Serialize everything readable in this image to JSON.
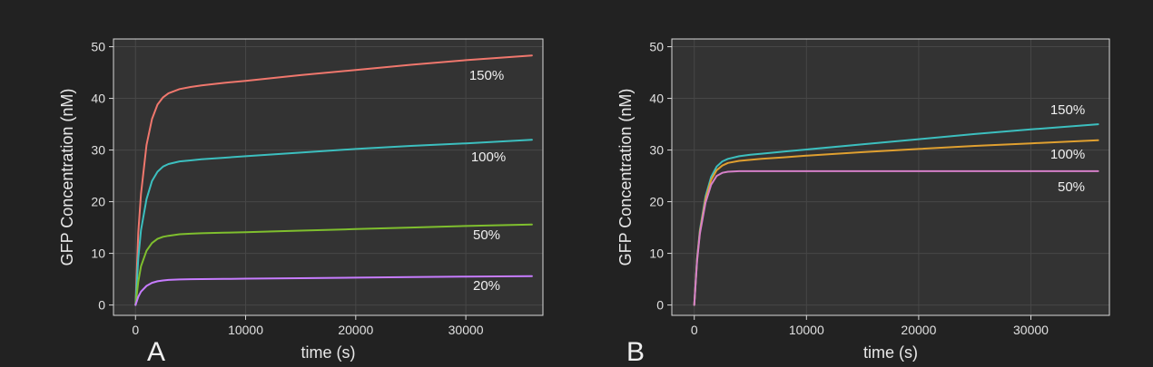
{
  "background": "#222222",
  "panel_background": "#333333",
  "chart_data": [
    {
      "type": "line",
      "panel_label": "A",
      "xlabel": "time (s)",
      "ylabel": "GFP Concentration (nM)",
      "xlim": [
        -2000,
        37000
      ],
      "ylim": [
        -2,
        51.5
      ],
      "xticks": [
        0,
        10000,
        20000,
        30000
      ],
      "yticks": [
        0,
        10,
        20,
        30,
        40,
        50
      ],
      "grid": true,
      "series": [
        {
          "name": "150%",
          "color": "#f0776d",
          "x": [
            0,
            250,
            500,
            1000,
            1500,
            2000,
            2500,
            3000,
            4000,
            5000,
            6000,
            8000,
            10000,
            15000,
            20000,
            25000,
            30000,
            36000
          ],
          "y": [
            0,
            14,
            21.5,
            31,
            36,
            38.8,
            40.2,
            41,
            41.8,
            42.2,
            42.5,
            43,
            43.4,
            44.5,
            45.5,
            46.5,
            47.4,
            48.3
          ]
        },
        {
          "name": "100%",
          "color": "#3cbfbf",
          "x": [
            0,
            250,
            500,
            1000,
            1500,
            2000,
            2500,
            3000,
            4000,
            5000,
            6000,
            8000,
            10000,
            15000,
            20000,
            25000,
            30000,
            36000
          ],
          "y": [
            0,
            9,
            14.5,
            20.5,
            24,
            25.8,
            26.8,
            27.3,
            27.8,
            28,
            28.2,
            28.5,
            28.8,
            29.5,
            30.2,
            30.8,
            31.3,
            32
          ]
        },
        {
          "name": "50%",
          "color": "#7fbf2e",
          "x": [
            0,
            250,
            500,
            1000,
            1500,
            2000,
            2500,
            3000,
            4000,
            5000,
            6000,
            8000,
            10000,
            15000,
            20000,
            25000,
            30000,
            36000
          ],
          "y": [
            0,
            4.5,
            7.5,
            10.5,
            12,
            12.8,
            13.2,
            13.4,
            13.7,
            13.8,
            13.9,
            14,
            14.1,
            14.4,
            14.7,
            15,
            15.3,
            15.6
          ]
        },
        {
          "name": "20%",
          "color": "#c77cff",
          "x": [
            0,
            250,
            500,
            1000,
            1500,
            2000,
            2500,
            3000,
            4000,
            5000,
            6000,
            8000,
            10000,
            15000,
            20000,
            25000,
            30000,
            36000
          ],
          "y": [
            0,
            1.6,
            2.6,
            3.7,
            4.3,
            4.6,
            4.75,
            4.85,
            4.95,
            5,
            5.02,
            5.05,
            5.1,
            5.2,
            5.3,
            5.4,
            5.5,
            5.6
          ]
        }
      ]
    },
    {
      "type": "line",
      "panel_label": "B",
      "xlabel": "time (s)",
      "ylabel": "GFP Concentration (nM)",
      "xlim": [
        -2000,
        37000
      ],
      "ylim": [
        -2,
        51.5
      ],
      "xticks": [
        0,
        10000,
        20000,
        30000
      ],
      "yticks": [
        0,
        10,
        20,
        30,
        40,
        50
      ],
      "grid": true,
      "series": [
        {
          "name": "150%",
          "color": "#3cbfbf",
          "x": [
            0,
            250,
            500,
            1000,
            1500,
            2000,
            2500,
            3000,
            4000,
            5000,
            6000,
            8000,
            10000,
            15000,
            20000,
            25000,
            30000,
            36000
          ],
          "y": [
            0,
            9,
            14.5,
            21,
            24.8,
            26.8,
            27.8,
            28.3,
            28.8,
            29.1,
            29.3,
            29.7,
            30.1,
            31.1,
            32.1,
            33.1,
            34,
            35
          ]
        },
        {
          "name": "100%",
          "color": "#e0a030",
          "x": [
            0,
            250,
            500,
            1000,
            1500,
            2000,
            2500,
            3000,
            4000,
            5000,
            6000,
            8000,
            10000,
            15000,
            20000,
            25000,
            30000,
            36000
          ],
          "y": [
            0,
            8.8,
            14.2,
            20.5,
            24.2,
            26.1,
            27,
            27.5,
            27.9,
            28.1,
            28.3,
            28.6,
            28.9,
            29.6,
            30.2,
            30.8,
            31.3,
            31.9
          ]
        },
        {
          "name": "50%",
          "color": "#d580c8",
          "x": [
            0,
            250,
            500,
            1000,
            1500,
            2000,
            2500,
            3000,
            4000,
            5000,
            6000,
            8000,
            10000,
            15000,
            20000,
            25000,
            30000,
            36000
          ],
          "y": [
            0,
            8.5,
            13.8,
            19.8,
            23.3,
            25,
            25.6,
            25.8,
            25.9,
            25.9,
            25.9,
            25.9,
            25.9,
            25.9,
            25.9,
            25.9,
            25.9,
            25.9
          ]
        }
      ]
    }
  ]
}
